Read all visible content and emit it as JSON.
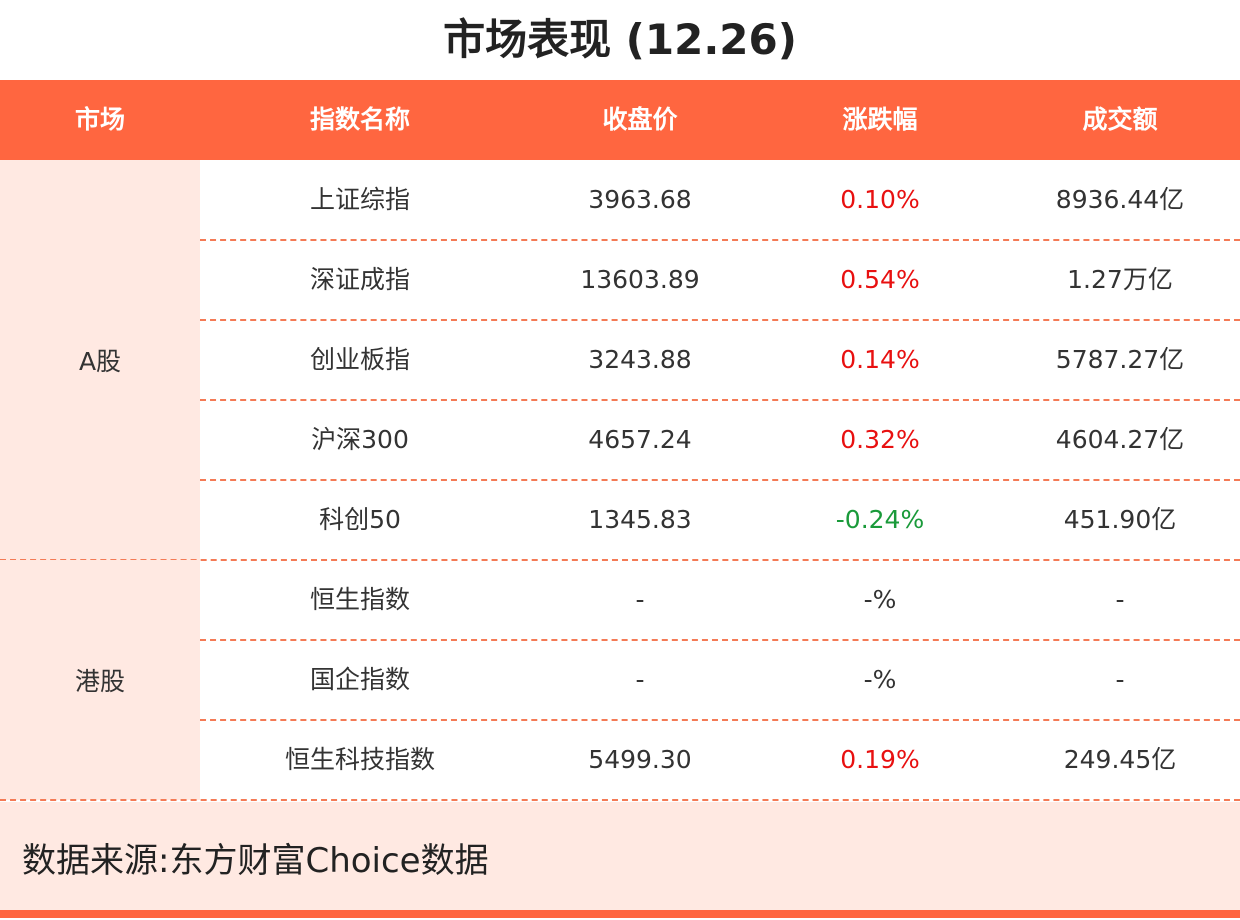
{
  "title": "市场表现 (12.26)",
  "table": {
    "headers": [
      "市场",
      "指数名称",
      "收盘价",
      "涨跌幅",
      "成交额"
    ],
    "groups": [
      {
        "market": "A股",
        "rows": [
          [
            "上证综指",
            "3963.68",
            "0.10%",
            "8936.44亿"
          ],
          [
            "深证成指",
            "13603.89",
            "0.54%",
            "1.27万亿"
          ],
          [
            "创业板指",
            "3243.88",
            "0.14%",
            "5787.27亿"
          ],
          [
            "沪深300",
            "4657.24",
            "0.32%",
            "4604.27亿"
          ],
          [
            "科创50",
            "1345.83",
            "-0.24%",
            "451.90亿"
          ]
        ]
      },
      {
        "market": "港股",
        "rows": [
          [
            "恒生指数",
            "-",
            "-%",
            "-"
          ],
          [
            "国企指数",
            "-",
            "-%",
            "-"
          ],
          [
            "恒生科技指数",
            "5499.30",
            "0.19%",
            "249.45亿"
          ]
        ]
      }
    ]
  },
  "footer": {
    "source": "数据来源:东方财富Choice数据"
  }
}
